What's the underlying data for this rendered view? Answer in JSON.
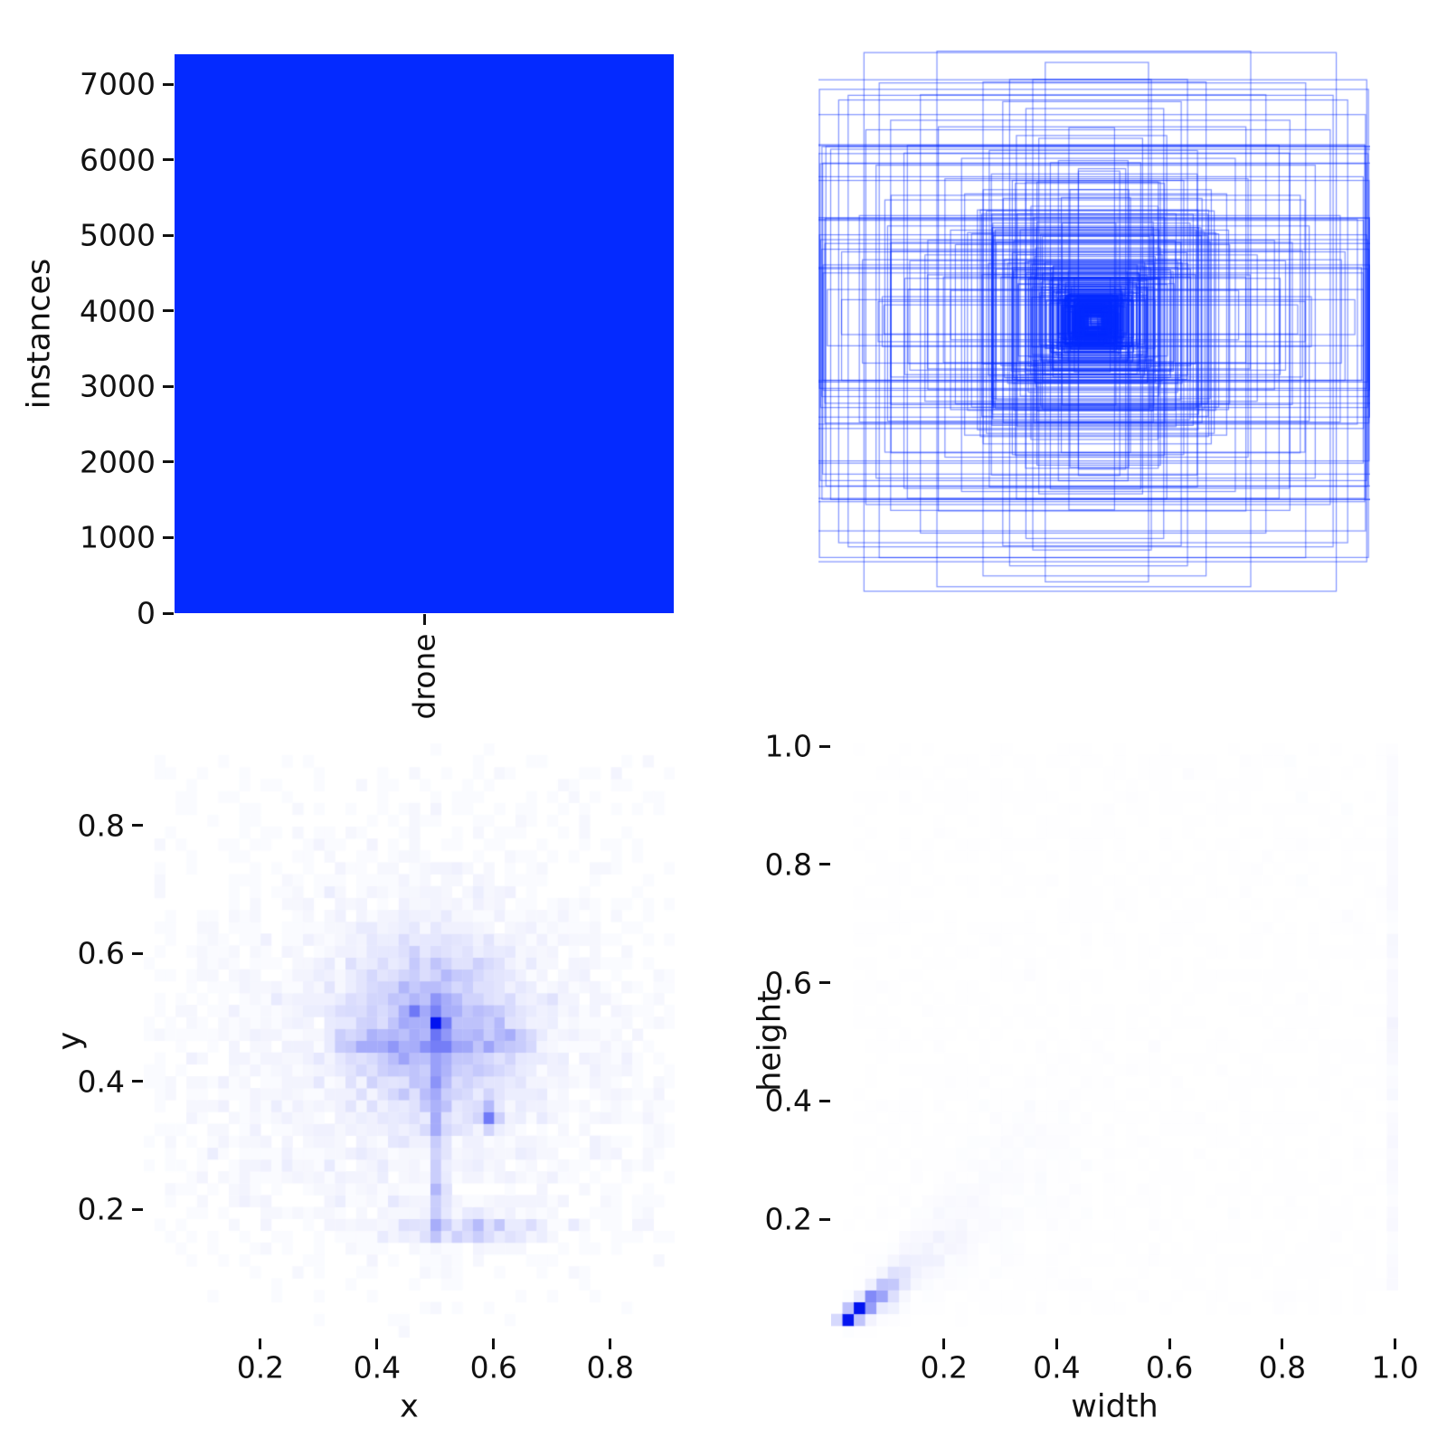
{
  "figure": {
    "background": "#ffffff",
    "accent_color": "#042AFF",
    "heatmap_low_color": "#ffffff",
    "heatmap_high_color": "#0213f0"
  },
  "chart_data": [
    {
      "id": "class-instances-bar",
      "type": "bar",
      "categories": [
        "drone"
      ],
      "values": [
        7400
      ],
      "ylabel": "instances",
      "ylim": [
        0,
        7400
      ],
      "yticks": [
        0,
        1000,
        2000,
        3000,
        4000,
        5000,
        6000,
        7000
      ],
      "ytick_labels": [
        "0",
        "1000",
        "2000",
        "3000",
        "4000",
        "5000",
        "6000",
        "7000"
      ],
      "bar_color": "#042AFF",
      "grid": false,
      "legend": "none"
    },
    {
      "id": "bounding-boxes-overlay",
      "type": "boxes",
      "count": 400,
      "seed": 9,
      "center": [
        0.5,
        0.5
      ],
      "center_jitter": 0.007,
      "min_w": 0.045,
      "min_h": 0.022,
      "edge_color": "#042AFF",
      "edge_alpha": 0.5,
      "line_width": 1.2,
      "size_mixture_from": 3
    },
    {
      "id": "xy-center-density",
      "type": "heatmap",
      "xlabel": "x",
      "ylabel": "y",
      "bins": 50,
      "samples": 7400,
      "seed": 101,
      "xlim": [
        0,
        0.9105
      ],
      "ylim": [
        0,
        0.928
      ],
      "xticks": [
        0.2,
        0.4,
        0.6,
        0.8
      ],
      "xtick_labels": [
        "0.2",
        "0.4",
        "0.6",
        "0.8"
      ],
      "yticks": [
        0.2,
        0.4,
        0.6,
        0.8
      ],
      "ytick_labels": [
        "0.2",
        "0.4",
        "0.6",
        "0.8"
      ],
      "peak": [
        0.503,
        0.492
      ],
      "gamma": 0.85,
      "mixture": [
        {
          "w": 0.385,
          "type": "gauss",
          "mx": 0.5,
          "my": 0.485,
          "sx": 0.085,
          "sy": 0.075
        },
        {
          "w": 0.315,
          "type": "gauss",
          "mx": 0.475,
          "my": 0.44,
          "sx": 0.21,
          "sy": 0.165
        },
        {
          "w": 0.055,
          "type": "vstreak",
          "x": 0.506,
          "sx": 0.005,
          "y0": 0.16,
          "y1": 0.53
        },
        {
          "w": 0.05,
          "type": "hstreak",
          "y": 0.462,
          "sy": 0.01,
          "x0": 0.33,
          "x1": 0.67
        },
        {
          "w": 0.04,
          "type": "gauss",
          "mx": 0.55,
          "my": 0.17,
          "sx": 0.08,
          "sy": 0.012
        },
        {
          "w": 0.075,
          "type": "uniform",
          "x0": 0.02,
          "x1": 0.9,
          "y0": 0.1,
          "y1": 0.9
        },
        {
          "w": 0.01,
          "type": "gauss",
          "mx": 0.503,
          "my": 0.492,
          "sx": 0.006,
          "sy": 0.006
        },
        {
          "w": 0.007,
          "type": "gauss",
          "mx": 0.462,
          "my": 0.515,
          "sx": 0.007,
          "sy": 0.007
        },
        {
          "w": 0.012,
          "type": "gauss",
          "mx": 0.594,
          "my": 0.345,
          "sx": 0.009,
          "sy": 0.009
        }
      ]
    },
    {
      "id": "width-height-density",
      "type": "heatmap",
      "xlabel": "width",
      "ylabel": "height",
      "bins": 50,
      "samples": 7400,
      "seed": 202,
      "xlim": [
        0,
        1.0055
      ],
      "ylim": [
        0,
        1.0046
      ],
      "xticks": [
        0.2,
        0.4,
        0.6,
        0.8,
        1.0
      ],
      "xtick_labels": [
        "0.2",
        "0.4",
        "0.6",
        "0.8",
        "1.0"
      ],
      "yticks": [
        0.2,
        0.4,
        0.6,
        0.8,
        1.0
      ],
      "ytick_labels": [
        "0.2",
        "0.4",
        "0.6",
        "0.8",
        "1.0"
      ],
      "peak": [
        0.048,
        0.045
      ],
      "gamma": 0.85,
      "mixture": [
        {
          "w": 0.4,
          "type": "diag",
          "base": 0.018,
          "scale": 0.05,
          "hfac": 0.72,
          "hsd": 0.1,
          "hoff": 0.012
        },
        {
          "w": 0.21,
          "type": "diag",
          "base": 0.03,
          "scale": 0.16,
          "hfac": 0.78,
          "hsd": 0.22,
          "hoff": 0.01
        },
        {
          "w": 0.2,
          "type": "uniform",
          "x0": 0.05,
          "x1": 1.0,
          "y0": 0.04,
          "y1": 1.0
        },
        {
          "w": 0.04,
          "type": "gauss",
          "mx": 0.32,
          "my": 0.28,
          "sx": 0.12,
          "sy": 0.1
        },
        {
          "w": 0.05,
          "type": "vstreak",
          "x": 0.995,
          "sx": 0.004,
          "y0": 0.08,
          "y1": 1.0
        },
        {
          "w": 0.012,
          "type": "gauss",
          "mx": 1.0,
          "my": 0.55,
          "sx": 0.004,
          "sy": 0.1
        },
        {
          "w": 0.03,
          "type": "gauss",
          "mx": 0.048,
          "my": 0.045,
          "sx": 0.012,
          "sy": 0.01
        },
        {
          "w": 0.018,
          "type": "gauss",
          "mx": 0.1,
          "my": 0.065,
          "sx": 0.012,
          "sy": 0.01
        }
      ]
    }
  ]
}
